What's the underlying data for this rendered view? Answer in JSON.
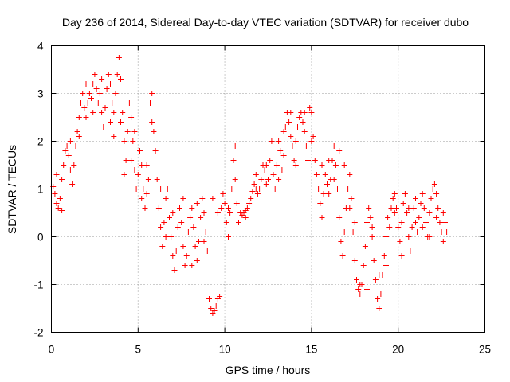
{
  "chart_data": {
    "type": "scatter",
    "title": "Day 236 of 2014, Sidereal Day-to-day VTEC variation (SDTVAR) for receiver dubo",
    "xlabel": "GPS time / hours",
    "ylabel": "SDTVAR / TECUs",
    "xlim": [
      0,
      25
    ],
    "ylim": [
      -2,
      4
    ],
    "grid": true,
    "marker": "+",
    "color": "#ff0000",
    "xticks": [
      0,
      5,
      10,
      15,
      20,
      25
    ],
    "yticks": [
      -2,
      -1,
      0,
      1,
      2,
      3,
      4
    ],
    "xtick_labels": [
      "0",
      "5",
      "10",
      "15",
      "20",
      "25"
    ],
    "ytick_labels": [
      "-2",
      "-1",
      "0",
      "1",
      "2",
      "3",
      "4"
    ],
    "series": [
      {
        "name": "SDTVAR",
        "points": [
          [
            0.0,
            1.0
          ],
          [
            0.1,
            1.05
          ],
          [
            0.2,
            0.9
          ],
          [
            0.3,
            0.7
          ],
          [
            0.4,
            0.6
          ],
          [
            0.5,
            0.8
          ],
          [
            0.6,
            1.2
          ],
          [
            0.7,
            1.5
          ],
          [
            0.8,
            1.8
          ],
          [
            0.9,
            1.9
          ],
          [
            1.0,
            1.7
          ],
          [
            1.1,
            1.4
          ],
          [
            1.2,
            1.1
          ],
          [
            1.3,
            1.5
          ],
          [
            1.4,
            1.9
          ],
          [
            1.5,
            2.2
          ],
          [
            1.6,
            2.5
          ],
          [
            1.7,
            2.8
          ],
          [
            1.8,
            3.0
          ],
          [
            1.9,
            2.7
          ],
          [
            2.0,
            2.5
          ],
          [
            2.1,
            2.8
          ],
          [
            2.2,
            3.0
          ],
          [
            2.3,
            2.9
          ],
          [
            2.4,
            3.2
          ],
          [
            2.5,
            3.4
          ],
          [
            2.6,
            3.1
          ],
          [
            2.7,
            2.8
          ],
          [
            2.8,
            3.0
          ],
          [
            2.9,
            2.6
          ],
          [
            3.0,
            2.3
          ],
          [
            3.1,
            2.7
          ],
          [
            3.2,
            3.1
          ],
          [
            3.3,
            3.4
          ],
          [
            3.4,
            3.2
          ],
          [
            3.5,
            2.8
          ],
          [
            3.6,
            2.6
          ],
          [
            3.7,
            3.0
          ],
          [
            3.8,
            3.4
          ],
          [
            3.9,
            3.75
          ],
          [
            4.0,
            3.3
          ],
          [
            4.1,
            2.6
          ],
          [
            4.2,
            2.0
          ],
          [
            4.3,
            1.6
          ],
          [
            4.4,
            2.2
          ],
          [
            4.5,
            2.8
          ],
          [
            4.6,
            2.5
          ],
          [
            4.7,
            2.0
          ],
          [
            4.8,
            1.4
          ],
          [
            4.9,
            1.0
          ],
          [
            5.0,
            1.3
          ],
          [
            5.1,
            1.8
          ],
          [
            5.2,
            1.5
          ],
          [
            5.3,
            1.0
          ],
          [
            5.4,
            0.6
          ],
          [
            5.5,
            0.9
          ],
          [
            5.6,
            1.2
          ],
          [
            5.7,
            2.8
          ],
          [
            5.8,
            2.4
          ],
          [
            5.9,
            2.2
          ],
          [
            6.0,
            1.8
          ],
          [
            6.1,
            1.2
          ],
          [
            6.2,
            0.6
          ],
          [
            6.3,
            0.2
          ],
          [
            6.4,
            -0.2
          ],
          [
            6.5,
            0.3
          ],
          [
            6.6,
            0.8
          ],
          [
            6.7,
            1.0
          ],
          [
            6.8,
            0.4
          ],
          [
            6.9,
            0.0
          ],
          [
            7.0,
            -0.4
          ],
          [
            7.1,
            -0.7
          ],
          [
            7.2,
            -0.3
          ],
          [
            7.3,
            0.2
          ],
          [
            7.4,
            0.6
          ],
          [
            7.5,
            0.3
          ],
          [
            7.6,
            -0.2
          ],
          [
            7.7,
            -0.6
          ],
          [
            7.8,
            -0.4
          ],
          [
            7.9,
            0.1
          ],
          [
            8.0,
            0.4
          ],
          [
            8.1,
            0.6
          ],
          [
            8.2,
            0.2
          ],
          [
            8.3,
            -0.2
          ],
          [
            8.4,
            -0.5
          ],
          [
            8.5,
            -0.1
          ],
          [
            8.6,
            0.4
          ],
          [
            8.7,
            0.8
          ],
          [
            8.8,
            0.5
          ],
          [
            8.9,
            0.1
          ],
          [
            9.0,
            -0.3
          ],
          [
            9.1,
            -1.3
          ],
          [
            9.2,
            -1.5
          ],
          [
            9.3,
            -1.6
          ],
          [
            9.4,
            -1.55
          ],
          [
            9.5,
            -1.45
          ],
          [
            9.6,
            -1.3
          ],
          [
            9.7,
            -1.25
          ],
          [
            9.8,
            0.6
          ],
          [
            9.9,
            0.9
          ],
          [
            10.0,
            0.7
          ],
          [
            10.1,
            0.3
          ],
          [
            10.2,
            0.0
          ],
          [
            10.3,
            0.5
          ],
          [
            10.4,
            1.0
          ],
          [
            10.5,
            1.6
          ],
          [
            10.6,
            1.2
          ],
          [
            10.7,
            0.7
          ],
          [
            10.8,
            0.3
          ],
          [
            10.9,
            0.5
          ],
          [
            11.0,
            0.45
          ],
          [
            11.1,
            0.5
          ],
          [
            11.2,
            0.55
          ],
          [
            11.3,
            0.6
          ],
          [
            11.4,
            0.7
          ],
          [
            11.5,
            0.8
          ],
          [
            11.6,
            0.95
          ],
          [
            11.7,
            1.1
          ],
          [
            11.8,
            1.3
          ],
          [
            11.9,
            0.9
          ],
          [
            12.0,
            1.0
          ],
          [
            12.1,
            1.2
          ],
          [
            12.2,
            1.5
          ],
          [
            12.3,
            1.4
          ],
          [
            12.4,
            1.1
          ],
          [
            12.5,
            1.2
          ],
          [
            12.6,
            1.6
          ],
          [
            12.7,
            2.0
          ],
          [
            12.8,
            1.3
          ],
          [
            12.9,
            1.0
          ],
          [
            13.0,
            1.5
          ],
          [
            13.1,
            2.0
          ],
          [
            13.2,
            1.8
          ],
          [
            13.3,
            1.4
          ],
          [
            13.4,
            1.7
          ],
          [
            13.5,
            2.3
          ],
          [
            13.6,
            2.6
          ],
          [
            13.7,
            2.4
          ],
          [
            13.8,
            2.1
          ],
          [
            13.9,
            1.9
          ],
          [
            14.0,
            1.6
          ],
          [
            14.1,
            2.0
          ],
          [
            14.2,
            2.3
          ],
          [
            14.3,
            2.5
          ],
          [
            14.4,
            2.6
          ],
          [
            14.5,
            2.4
          ],
          [
            14.6,
            2.2
          ],
          [
            14.7,
            1.9
          ],
          [
            14.8,
            1.6
          ],
          [
            14.9,
            2.7
          ],
          [
            15.0,
            2.6
          ],
          [
            15.1,
            2.1
          ],
          [
            15.2,
            1.6
          ],
          [
            15.3,
            1.3
          ],
          [
            15.4,
            1.0
          ],
          [
            15.5,
            0.7
          ],
          [
            15.6,
            0.4
          ],
          [
            15.7,
            0.9
          ],
          [
            15.8,
            1.3
          ],
          [
            15.9,
            1.1
          ],
          [
            16.0,
            0.9
          ],
          [
            16.1,
            1.2
          ],
          [
            16.2,
            1.6
          ],
          [
            16.3,
            1.9
          ],
          [
            16.4,
            1.5
          ],
          [
            16.5,
            1.0
          ],
          [
            16.6,
            0.4
          ],
          [
            16.7,
            -0.1
          ],
          [
            16.8,
            -0.4
          ],
          [
            16.9,
            0.1
          ],
          [
            17.0,
            0.6
          ],
          [
            17.1,
            1.0
          ],
          [
            17.2,
            1.3
          ],
          [
            17.3,
            0.8
          ],
          [
            17.4,
            0.1
          ],
          [
            17.5,
            -0.5
          ],
          [
            17.6,
            -0.9
          ],
          [
            17.7,
            -1.1
          ],
          [
            17.8,
            -1.2
          ],
          [
            17.9,
            -1.0
          ],
          [
            18.0,
            -0.6
          ],
          [
            18.1,
            -0.2
          ],
          [
            18.2,
            0.3
          ],
          [
            18.3,
            0.6
          ],
          [
            18.4,
            0.4
          ],
          [
            18.5,
            0.0
          ],
          [
            18.6,
            -0.5
          ],
          [
            18.7,
            -0.9
          ],
          [
            18.8,
            -1.3
          ],
          [
            18.9,
            -1.5
          ],
          [
            19.0,
            -1.2
          ],
          [
            19.1,
            -0.8
          ],
          [
            19.2,
            -0.4
          ],
          [
            19.3,
            0.0
          ],
          [
            19.4,
            0.4
          ],
          [
            19.5,
            0.2
          ],
          [
            19.6,
            0.6
          ],
          [
            19.7,
            0.8
          ],
          [
            19.8,
            0.9
          ],
          [
            19.9,
            0.6
          ],
          [
            20.0,
            0.2
          ],
          [
            20.1,
            -0.1
          ],
          [
            20.2,
            0.3
          ],
          [
            20.3,
            0.7
          ],
          [
            20.4,
            0.9
          ],
          [
            20.5,
            0.5
          ],
          [
            20.6,
            0.0
          ],
          [
            20.7,
            -0.3
          ],
          [
            20.8,
            0.2
          ],
          [
            20.9,
            0.6
          ],
          [
            21.0,
            0.3
          ],
          [
            21.1,
            0.1
          ],
          [
            21.2,
            0.4
          ],
          [
            21.3,
            0.7
          ],
          [
            21.4,
            0.9
          ],
          [
            21.5,
            0.6
          ],
          [
            21.6,
            0.3
          ],
          [
            21.7,
            0.0
          ],
          [
            21.8,
            0.5
          ],
          [
            21.9,
            0.8
          ],
          [
            22.0,
            1.0
          ],
          [
            22.1,
            1.1
          ],
          [
            22.2,
            0.9
          ],
          [
            22.3,
            0.6
          ],
          [
            22.4,
            0.3
          ],
          [
            22.5,
            0.1
          ],
          [
            22.6,
            0.5
          ],
          [
            22.7,
            0.3
          ],
          [
            22.8,
            0.1
          ],
          [
            0.3,
            1.3
          ],
          [
            0.6,
            0.55
          ],
          [
            1.1,
            2.0
          ],
          [
            1.6,
            2.1
          ],
          [
            2.0,
            3.2
          ],
          [
            2.4,
            2.6
          ],
          [
            2.9,
            3.3
          ],
          [
            3.4,
            2.4
          ],
          [
            3.6,
            2.1
          ],
          [
            4.0,
            2.4
          ],
          [
            4.2,
            1.3
          ],
          [
            4.6,
            1.6
          ],
          [
            4.8,
            2.2
          ],
          [
            5.2,
            0.8
          ],
          [
            5.5,
            1.5
          ],
          [
            5.8,
            3.0
          ],
          [
            6.3,
            1.0
          ],
          [
            6.6,
            0.0
          ],
          [
            7.0,
            0.5
          ],
          [
            7.6,
            0.8
          ],
          [
            8.1,
            -0.6
          ],
          [
            8.4,
            0.7
          ],
          [
            8.8,
            -0.1
          ],
          [
            9.3,
            0.8
          ],
          [
            9.6,
            0.5
          ],
          [
            10.2,
            0.6
          ],
          [
            10.6,
            1.9
          ],
          [
            11.2,
            0.4
          ],
          [
            11.8,
            1.0
          ],
          [
            12.4,
            1.5
          ],
          [
            13.1,
            1.2
          ],
          [
            13.4,
            2.2
          ],
          [
            13.8,
            2.6
          ],
          [
            14.1,
            1.5
          ],
          [
            14.6,
            2.6
          ],
          [
            15.0,
            2.0
          ],
          [
            15.6,
            1.5
          ],
          [
            16.0,
            1.6
          ],
          [
            16.3,
            1.2
          ],
          [
            16.6,
            1.8
          ],
          [
            16.9,
            1.5
          ],
          [
            17.2,
            0.6
          ],
          [
            17.5,
            0.3
          ],
          [
            17.8,
            -1.0
          ],
          [
            18.2,
            -1.1
          ],
          [
            18.5,
            0.2
          ],
          [
            18.9,
            -0.8
          ],
          [
            19.3,
            -0.6
          ],
          [
            19.8,
            0.5
          ],
          [
            20.2,
            -0.4
          ],
          [
            20.6,
            0.6
          ],
          [
            21.0,
            0.8
          ],
          [
            21.4,
            0.2
          ],
          [
            21.8,
            0.0
          ],
          [
            22.2,
            0.4
          ],
          [
            22.6,
            -0.1
          ]
        ]
      }
    ]
  }
}
